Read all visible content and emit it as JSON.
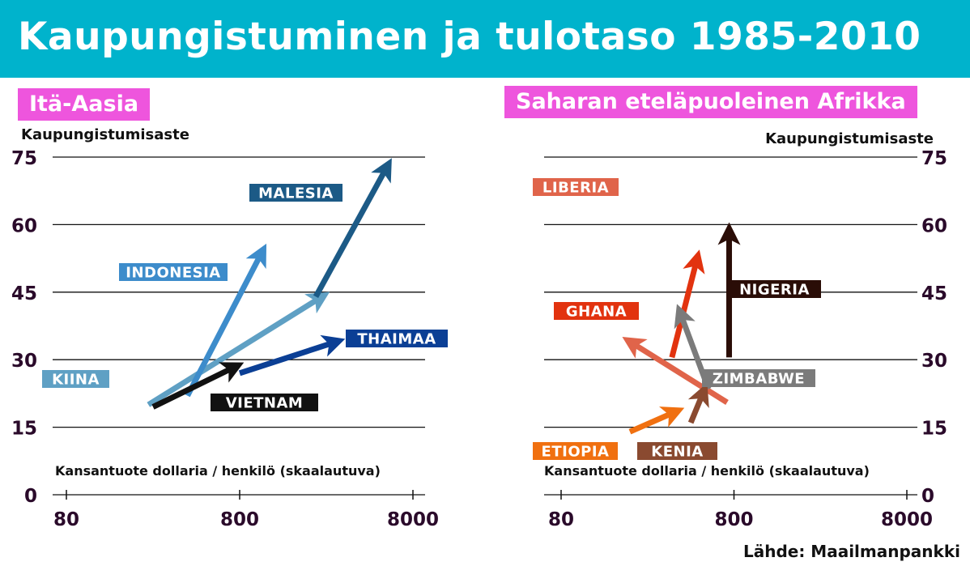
{
  "title": "Kaupungistuminen ja tulotaso 1985-2010",
  "source": "Lähde: Maailmanpankki",
  "colors": {
    "header": "#00b3cc",
    "panel_label": "#ee55dd"
  },
  "chart_data": [
    {
      "type": "arrow",
      "title": "Itä-Aasia",
      "ylabel": "Kaupungistumisaste",
      "xlabel": "Kansantuote dollaria / henkilö (skaalautuva)",
      "xscale": "log",
      "xlim": [
        60,
        10000
      ],
      "ylim": [
        0,
        75
      ],
      "xticks": [
        80,
        800,
        8000
      ],
      "yticks": [
        0,
        15,
        30,
        45,
        60,
        75
      ],
      "grid": true,
      "series": [
        {
          "name": "KIINA",
          "color": "#5fa0c4",
          "from": [
            238,
            20
          ],
          "to": [
            2390,
            44
          ]
        },
        {
          "name": "INDONESIA",
          "color": "#3d8ccb",
          "from": [
            400,
            22
          ],
          "to": [
            1080,
            54
          ]
        },
        {
          "name": "MALESIA",
          "color": "#1c5a86",
          "from": [
            2200,
            44
          ],
          "to": [
            5700,
            73
          ]
        },
        {
          "name": "THAIMAA",
          "color": "#0b3f95",
          "from": [
            800,
            27
          ],
          "to": [
            2900,
            34
          ]
        },
        {
          "name": "VIETNAM",
          "color": "#111111",
          "from": [
            253,
            19.5
          ],
          "to": [
            760,
            28.5
          ]
        }
      ]
    },
    {
      "type": "arrow",
      "title": "Saharan eteläpuoleinen Afrikka",
      "ylabel": "Kaupungistumisaste",
      "xlabel": "Kansantuote dollaria / henkilö (skaalautuva)",
      "xscale": "log",
      "xlim": [
        60,
        10000
      ],
      "ylim": [
        0,
        75
      ],
      "xticks": [
        80,
        800,
        8000
      ],
      "yticks": [
        0,
        15,
        30,
        45,
        60,
        75
      ],
      "grid": true,
      "series": [
        {
          "name": "LIBERIA",
          "color": "#e0644a",
          "from": [
            730,
            20.5
          ],
          "to": [
            200,
            34
          ]
        },
        {
          "name": "GHANA",
          "color": "#e2330f",
          "from": [
            350,
            30.5
          ],
          "to": [
            490,
            52.5
          ]
        },
        {
          "name": "NIGERIA",
          "color": "#2a0d07",
          "from": [
            750,
            30.5
          ],
          "to": [
            750,
            58.5
          ]
        },
        {
          "name": "ZIMBABWE",
          "color": "#7b7b7b",
          "from": [
            570,
            23.5
          ],
          "to": [
            390,
            40.5
          ]
        },
        {
          "name": "ETIOPIA",
          "color": "#f07010",
          "from": [
            200,
            14
          ],
          "to": [
            370,
            18.5
          ]
        },
        {
          "name": "KENIA",
          "color": "#8a4a30",
          "from": [
            450,
            16
          ],
          "to": [
            535,
            23
          ]
        }
      ]
    }
  ]
}
